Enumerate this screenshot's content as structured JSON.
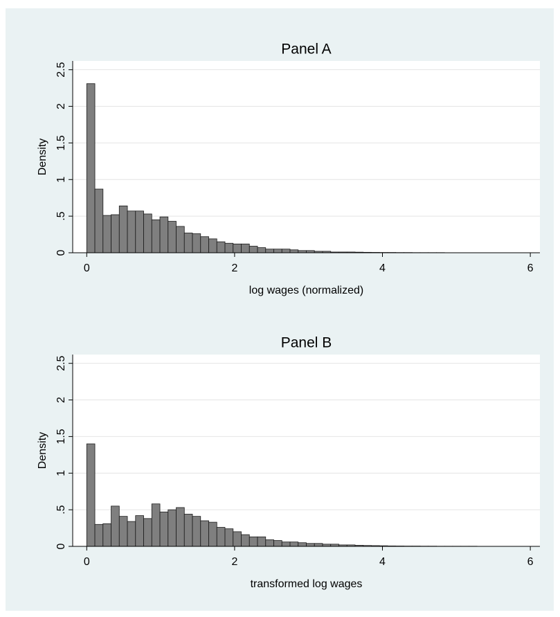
{
  "chart_data": [
    {
      "type": "histogram",
      "title": "Panel A",
      "x_label": "log wages (normalized)",
      "y_label": "Density",
      "bins": [
        0,
        0.11,
        0.22,
        0.33,
        0.44,
        0.55,
        0.66,
        0.77,
        0.88,
        0.99,
        1.1,
        1.21,
        1.32,
        1.43,
        1.54,
        1.65,
        1.76,
        1.87,
        1.98,
        2.09,
        2.2,
        2.31,
        2.42,
        2.53,
        2.64,
        2.75,
        2.86,
        2.97,
        3.08,
        3.19,
        3.3,
        3.41,
        3.52,
        3.63,
        3.74,
        3.85,
        3.96,
        4.07,
        4.18,
        4.29,
        4.4,
        4.51,
        4.62,
        4.73,
        4.84
      ],
      "values": [
        2.31,
        0.87,
        0.51,
        0.52,
        0.64,
        0.57,
        0.57,
        0.53,
        0.45,
        0.49,
        0.43,
        0.36,
        0.27,
        0.26,
        0.22,
        0.19,
        0.15,
        0.13,
        0.12,
        0.12,
        0.09,
        0.07,
        0.05,
        0.05,
        0.05,
        0.04,
        0.03,
        0.03,
        0.02,
        0.02,
        0.01,
        0.01,
        0.01,
        0.008,
        0.006,
        0.005,
        0.004,
        0.004,
        0.003,
        0.003,
        0.002,
        0.002,
        0.002,
        0.002
      ],
      "color": "#7f7f7f",
      "xlim": [
        -0.19,
        6.13
      ],
      "ylim": [
        0,
        2.62
      ],
      "xticks": [
        0,
        2,
        4,
        6
      ],
      "yticks": [
        0,
        {
          "value": 0.5,
          "label": ".5"
        },
        1,
        1.5,
        2,
        2.5
      ],
      "grid": true
    },
    {
      "type": "histogram",
      "title": "Panel B",
      "x_label": "transformed log wages",
      "y_label": "Density",
      "bins": [
        0,
        0.11,
        0.22,
        0.33,
        0.44,
        0.55,
        0.66,
        0.77,
        0.88,
        0.99,
        1.1,
        1.21,
        1.32,
        1.43,
        1.54,
        1.65,
        1.76,
        1.87,
        1.98,
        2.09,
        2.2,
        2.31,
        2.42,
        2.53,
        2.64,
        2.75,
        2.86,
        2.97,
        3.08,
        3.19,
        3.3,
        3.41,
        3.52,
        3.63,
        3.74,
        3.85,
        3.96,
        4.07,
        4.18,
        4.29,
        4.4,
        4.51,
        4.62,
        4.73,
        4.84,
        4.95,
        5.06,
        5.17,
        5.28
      ],
      "values": [
        1.4,
        0.3,
        0.31,
        0.55,
        0.41,
        0.34,
        0.42,
        0.38,
        0.58,
        0.47,
        0.5,
        0.53,
        0.44,
        0.41,
        0.35,
        0.33,
        0.26,
        0.24,
        0.2,
        0.16,
        0.13,
        0.13,
        0.09,
        0.08,
        0.06,
        0.06,
        0.05,
        0.04,
        0.04,
        0.03,
        0.03,
        0.02,
        0.02,
        0.015,
        0.012,
        0.01,
        0.008,
        0.006,
        0.005,
        0.004,
        0.004,
        0.003,
        0.003,
        0.002,
        0.002,
        0.002,
        0.002,
        0.002
      ],
      "color": "#7f7f7f",
      "xlim": [
        -0.19,
        6.13
      ],
      "ylim": [
        0,
        2.62
      ],
      "xticks": [
        0,
        2,
        4,
        6
      ],
      "yticks": [
        0,
        {
          "value": 0.5,
          "label": ".5"
        },
        1,
        1.5,
        2,
        2.5
      ],
      "grid": true
    }
  ]
}
